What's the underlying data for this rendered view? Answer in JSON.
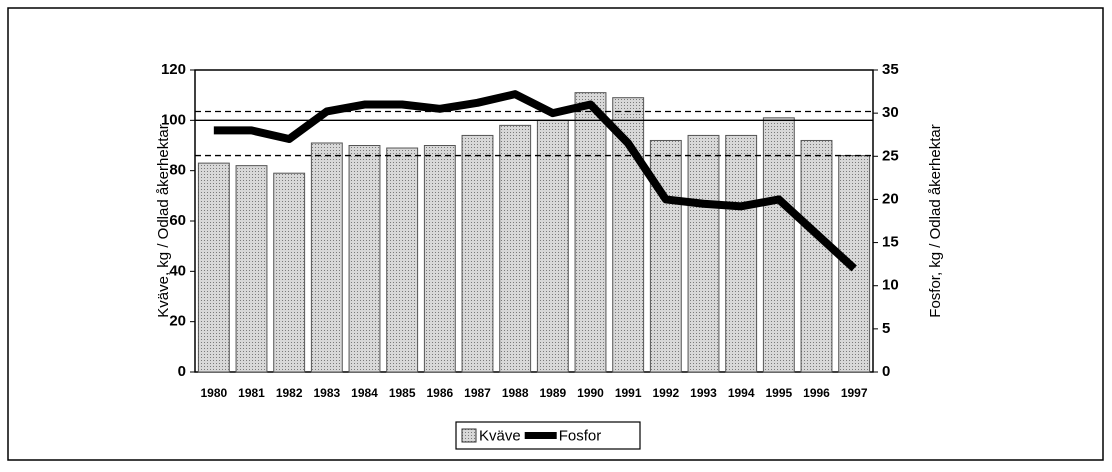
{
  "chart_data": {
    "type": "combo",
    "categories": [
      "1980",
      "1981",
      "1982",
      "1983",
      "1984",
      "1985",
      "1986",
      "1987",
      "1988",
      "1989",
      "1990",
      "1991",
      "1992",
      "1993",
      "1994",
      "1995",
      "1996",
      "1997"
    ],
    "series": [
      {
        "name": "Kväve",
        "type": "bar",
        "color": "#c4c4c4",
        "values": [
          83,
          82,
          79,
          91,
          90,
          89,
          90,
          94,
          98,
          100,
          111,
          109,
          92,
          94,
          94,
          101,
          92,
          86
        ]
      },
      {
        "name": "Fosfor",
        "type": "line",
        "axis": "y2",
        "color": "#000000",
        "values": [
          28,
          28,
          27,
          30.2,
          31,
          31,
          30.5,
          31.2,
          32.2,
          30,
          31,
          26.5,
          20,
          19.5,
          19.2,
          20,
          16,
          12
        ]
      }
    ],
    "ylabel": "Kväve, kg / Odlad åkerhektar",
    "y2label": "Fosfor, kg / Odlad åkerhektar",
    "ylim": [
      0,
      120
    ],
    "yticks": [
      0,
      20,
      40,
      60,
      80,
      100,
      120
    ],
    "y2lim": [
      0,
      35
    ],
    "y2ticks": [
      0,
      5,
      10,
      15,
      20,
      25,
      30,
      35
    ],
    "reference_lines": [
      {
        "value": 100,
        "style": "solid"
      },
      {
        "value": 103.5,
        "style": "dashed"
      },
      {
        "value": 86,
        "style": "dashed"
      }
    ],
    "legend": "bottom"
  }
}
